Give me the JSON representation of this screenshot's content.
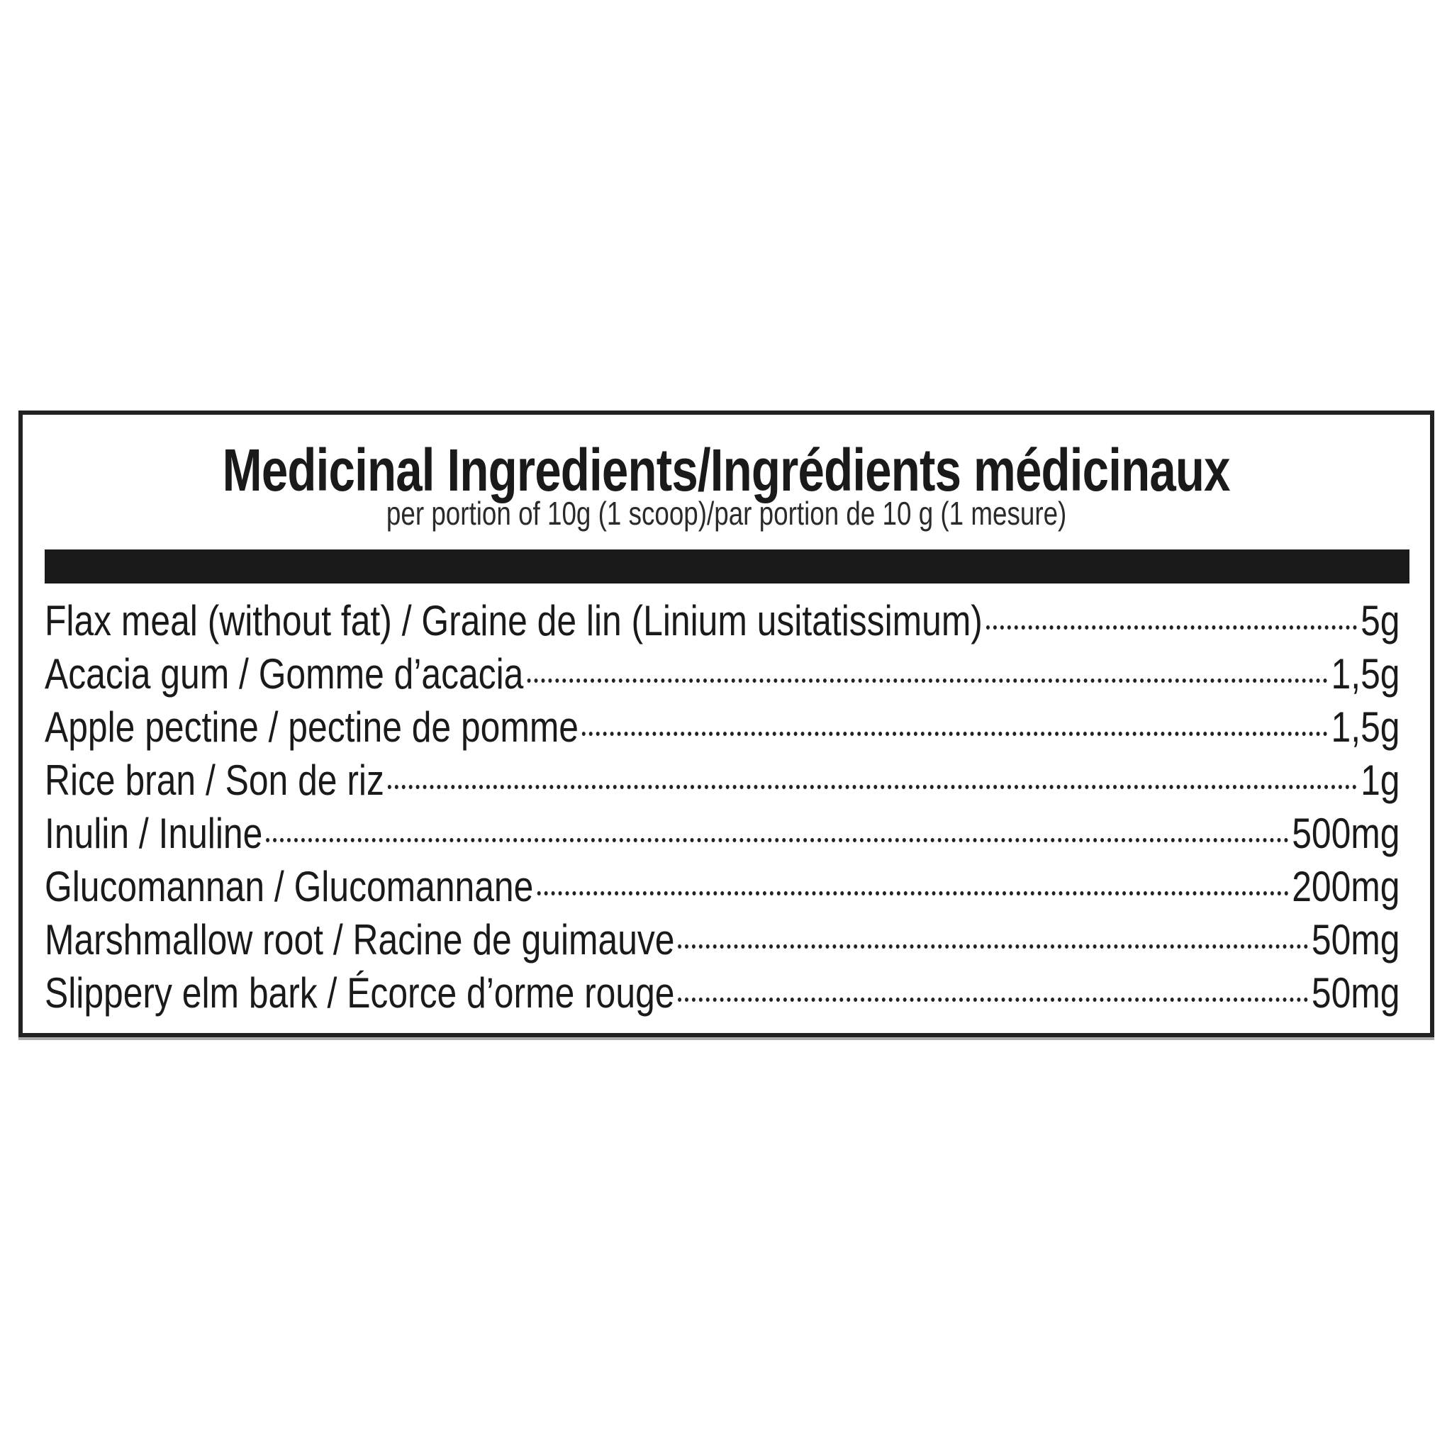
{
  "title": "Medicinal Ingredients/Ingrédients médicinaux",
  "subtitle": "per portion of 10g (1 scoop)/par portion de 10 g (1 mesure)",
  "ingredients": [
    {
      "name": "Flax meal (without fat) / Graine de lin (Linium usitatissimum)",
      "amount": "5g"
    },
    {
      "name": "Acacia gum / Gomme d’acacia",
      "amount": "1,5g"
    },
    {
      "name": "Apple pectine / pectine de pomme",
      "amount": "1,5g"
    },
    {
      "name": "Rice bran / Son de riz",
      "amount": "1g"
    },
    {
      "name": "Inulin / Inuline",
      "amount": "500mg"
    },
    {
      "name": "Glucomannan / Glucomannane",
      "amount": "200mg"
    },
    {
      "name": "Marshmallow root / Racine de guimauve",
      "amount": "50mg"
    },
    {
      "name": "Slippery elm bark / Écorce d’orme rouge",
      "amount": "50mg"
    }
  ]
}
